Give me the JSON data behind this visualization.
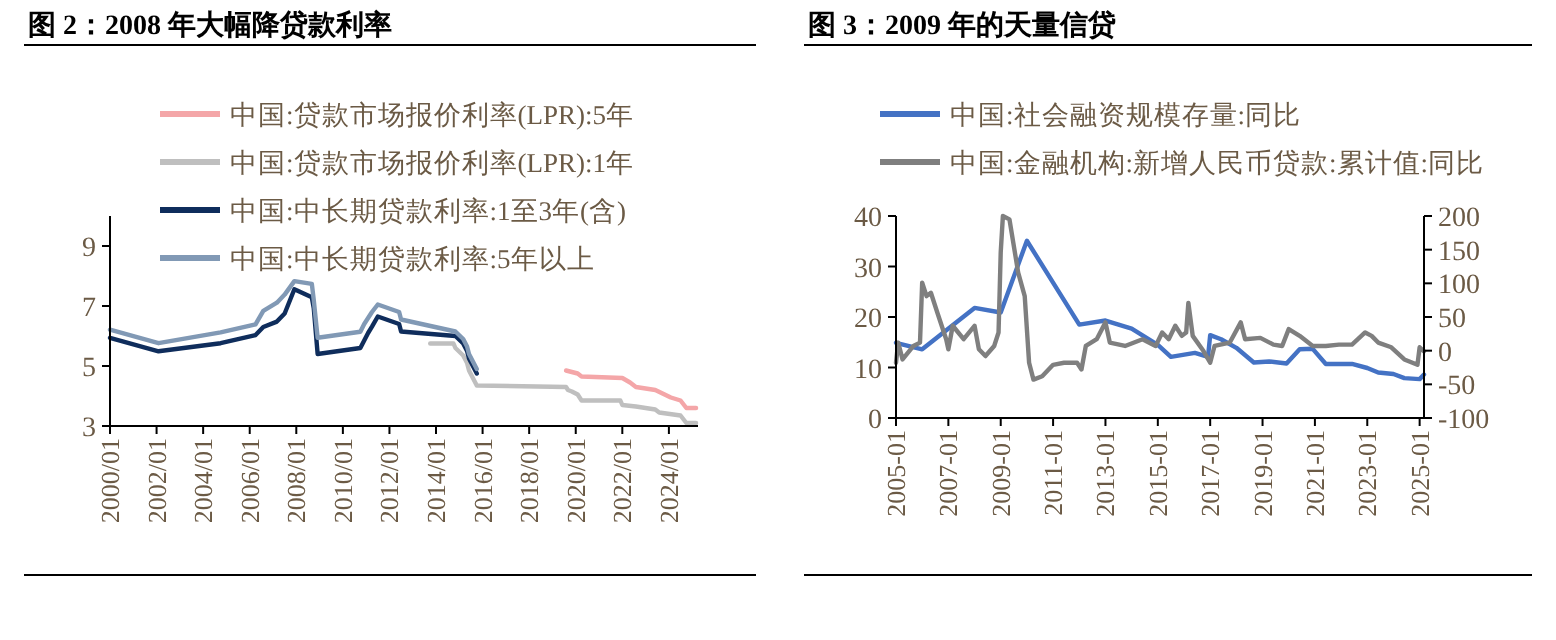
{
  "chart_data": [
    {
      "type": "line",
      "title": "图 2：2008 年大幅降贷款利率",
      "legend": "top",
      "xlim": [
        "2000-01",
        "2025-04"
      ],
      "ylim": [
        3,
        10
      ],
      "yticks": [
        3,
        5,
        7,
        9
      ],
      "xticks": [
        {
          "value": "2000-01",
          "label": "2000/01"
        },
        {
          "value": "2002-01",
          "label": "2002/01"
        },
        {
          "value": "2004-01",
          "label": "2004/01"
        },
        {
          "value": "2006-01",
          "label": "2006/01"
        },
        {
          "value": "2008-01",
          "label": "2008/01"
        },
        {
          "value": "2010-01",
          "label": "2010/01"
        },
        {
          "value": "2012-01",
          "label": "2012/01"
        },
        {
          "value": "2014-01",
          "label": "2014/01"
        },
        {
          "value": "2016-01",
          "label": "2016/01"
        },
        {
          "value": "2018-01",
          "label": "2018/01"
        },
        {
          "value": "2020-01",
          "label": "2020/01"
        },
        {
          "value": "2022-01",
          "label": "2022/01"
        },
        {
          "value": "2024-01",
          "label": "2024/01"
        }
      ],
      "series": [
        {
          "name": "中国:贷款市场报价利率(LPR):5年",
          "color": "#f4a6a8",
          "x": [
            "2019-08",
            "2019-11",
            "2020-02",
            "2020-04",
            "2022-01",
            "2022-05",
            "2022-08",
            "2023-06",
            "2024-02",
            "2024-07",
            "2024-10",
            "2025-03"
          ],
          "values": [
            4.85,
            4.8,
            4.75,
            4.65,
            4.6,
            4.45,
            4.3,
            4.2,
            3.95,
            3.85,
            3.6,
            3.6
          ]
        },
        {
          "name": "中国:贷款市场报价利率(LPR):1年",
          "color": "#bfbfbf",
          "x": [
            "2013-10",
            "2014-10",
            "2014-11",
            "2015-03",
            "2015-05",
            "2015-06",
            "2015-08",
            "2015-10",
            "2019-08",
            "2019-09",
            "2019-11",
            "2020-02",
            "2020-04",
            "2021-12",
            "2022-01",
            "2022-08",
            "2023-06",
            "2023-08",
            "2024-07",
            "2024-10",
            "2025-03"
          ],
          "values": [
            5.75,
            5.75,
            5.6,
            5.35,
            5.1,
            4.85,
            4.6,
            4.35,
            4.3,
            4.2,
            4.15,
            4.05,
            3.85,
            3.85,
            3.7,
            3.65,
            3.55,
            3.45,
            3.35,
            3.1,
            3.1
          ]
        },
        {
          "name": "中国:中长期贷款利率:1至3年(含)",
          "color": "#0f2d5c",
          "x": [
            "2000-01",
            "2002-02",
            "2004-10",
            "2006-04",
            "2006-08",
            "2007-03",
            "2007-07",
            "2007-12",
            "2008-09",
            "2008-10",
            "2008-12",
            "2010-10",
            "2010-12",
            "2011-02",
            "2011-04",
            "2011-07",
            "2012-06",
            "2012-07",
            "2014-11",
            "2015-03",
            "2015-05",
            "2015-06",
            "2015-08",
            "2015-10"
          ],
          "values": [
            5.94,
            5.49,
            5.76,
            6.03,
            6.3,
            6.48,
            6.75,
            7.56,
            7.29,
            6.93,
            5.4,
            5.6,
            5.85,
            6.1,
            6.31,
            6.65,
            6.4,
            6.15,
            6.0,
            5.75,
            5.5,
            5.25,
            5.0,
            4.75
          ]
        },
        {
          "name": "中国:中长期贷款利率:5年以上",
          "color": "#8199b5",
          "x": [
            "2000-01",
            "2002-02",
            "2004-10",
            "2006-04",
            "2006-08",
            "2007-03",
            "2007-07",
            "2007-12",
            "2008-09",
            "2008-10",
            "2008-12",
            "2010-10",
            "2010-12",
            "2011-02",
            "2011-04",
            "2011-07",
            "2012-06",
            "2012-07",
            "2014-11",
            "2015-03",
            "2015-05",
            "2015-06",
            "2015-08",
            "2015-10"
          ],
          "values": [
            6.21,
            5.76,
            6.12,
            6.39,
            6.84,
            7.11,
            7.38,
            7.83,
            7.74,
            7.2,
            5.94,
            6.14,
            6.4,
            6.6,
            6.8,
            7.05,
            6.8,
            6.55,
            6.15,
            5.9,
            5.65,
            5.4,
            5.15,
            4.9
          ]
        }
      ]
    },
    {
      "type": "line",
      "title": "图 3：2009 年的天量信贷",
      "legend": "top",
      "xlim": [
        "2005-01",
        "2025-03"
      ],
      "ylim": [
        0,
        40
      ],
      "yticks": [
        0,
        10,
        20,
        30,
        40
      ],
      "y2lim": [
        -100,
        200
      ],
      "y2ticks": [
        -100,
        -50,
        0,
        50,
        100,
        150,
        200
      ],
      "xticks": [
        {
          "value": "2005-01",
          "label": "2005-01"
        },
        {
          "value": "2007-01",
          "label": "2007-01"
        },
        {
          "value": "2009-01",
          "label": "2009-01"
        },
        {
          "value": "2011-01",
          "label": "2011-01"
        },
        {
          "value": "2013-01",
          "label": "2013-01"
        },
        {
          "value": "2015-01",
          "label": "2015-01"
        },
        {
          "value": "2017-01",
          "label": "2017-01"
        },
        {
          "value": "2019-01",
          "label": "2019-01"
        },
        {
          "value": "2021-01",
          "label": "2021-01"
        },
        {
          "value": "2023-01",
          "label": "2023-01"
        },
        {
          "value": "2025-01",
          "label": "2025-01"
        }
      ],
      "series": [
        {
          "name": "中国:社会融资规模存量:同比",
          "color": "#4472c4",
          "x": [
            "2005-01",
            "2006-01",
            "2008-01",
            "2009-01",
            "2010-01",
            "2012-01",
            "2013-01",
            "2014-01",
            "2015-01",
            "2015-07",
            "2016-06",
            "2016-12",
            "2017-01",
            "2017-06",
            "2018-01",
            "2018-09",
            "2019-04",
            "2019-12",
            "2020-06",
            "2020-12",
            "2021-06",
            "2022-06",
            "2023-01",
            "2023-06",
            "2024-01",
            "2024-06",
            "2025-01",
            "2025-03"
          ],
          "values": [
            14.9,
            13.6,
            21.8,
            20.9,
            35.1,
            18.5,
            19.3,
            17.7,
            14.5,
            12.1,
            12.9,
            12.1,
            16.4,
            15.6,
            13.9,
            11.0,
            11.2,
            10.8,
            13.6,
            13.7,
            10.7,
            10.7,
            9.9,
            9.0,
            8.7,
            7.9,
            7.7,
            8.6
          ]
        },
        {
          "name": "中国:金融机构:新增人民币贷款:累计值:同比",
          "color": "#7f7f7f",
          "axis": "y2",
          "x": [
            "2005-01",
            "2005-02",
            "2005-04",
            "2005-09",
            "2005-12",
            "2006-01",
            "2006-03",
            "2006-05",
            "2006-08",
            "2006-12",
            "2007-01",
            "2007-03",
            "2007-08",
            "2008-01",
            "2008-03",
            "2008-06",
            "2008-10",
            "2008-12",
            "2009-01",
            "2009-02",
            "2009-05",
            "2009-09",
            "2009-12",
            "2010-02",
            "2010-04",
            "2010-08",
            "2011-01",
            "2011-06",
            "2011-12",
            "2012-02",
            "2012-04",
            "2012-09",
            "2013-01",
            "2013-03",
            "2013-10",
            "2014-06",
            "2014-12",
            "2015-03",
            "2015-06",
            "2015-09",
            "2015-12",
            "2016-02",
            "2016-03",
            "2016-05",
            "2016-10",
            "2017-01",
            "2017-03",
            "2017-10",
            "2018-03",
            "2018-05",
            "2018-12",
            "2019-06",
            "2019-10",
            "2020-01",
            "2020-06",
            "2020-12",
            "2021-06",
            "2021-12",
            "2022-06",
            "2022-12",
            "2023-03",
            "2023-06",
            "2023-12",
            "2024-06",
            "2024-12",
            "2025-01",
            "2025-03"
          ],
          "values": [
            -18,
            12,
            -13,
            7,
            12,
            101,
            81,
            86,
            56,
            17,
            2,
            37,
            17,
            37,
            2,
            -8,
            7,
            27,
            146,
            200,
            195,
            116,
            81,
            -18,
            -43,
            -38,
            -21,
            -18,
            -18,
            -28,
            7,
            17,
            42,
            12,
            7,
            17,
            7,
            27,
            17,
            37,
            22,
            27,
            71,
            22,
            -1,
            -18,
            7,
            12,
            42,
            17,
            19,
            9,
            7,
            32,
            22,
            7,
            7,
            9,
            9,
            27,
            22,
            12,
            5,
            -13,
            -21,
            5,
            -1
          ]
        }
      ]
    }
  ]
}
